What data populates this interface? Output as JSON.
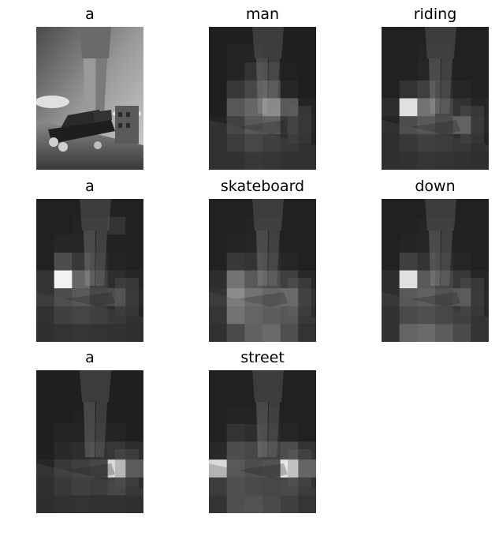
{
  "panels": [
    {
      "word": "a",
      "kind": "original",
      "cells": []
    },
    {
      "word": "man",
      "kind": "attention",
      "cells": [
        [
          0.12,
          0.12,
          0.12,
          0.12,
          0.12,
          0.12
        ],
        [
          0.12,
          0.14,
          0.14,
          0.13,
          0.12,
          0.12
        ],
        [
          0.12,
          0.14,
          0.2,
          0.18,
          0.13,
          0.12
        ],
        [
          0.12,
          0.22,
          0.28,
          0.3,
          0.15,
          0.12
        ],
        [
          0.12,
          0.34,
          0.4,
          0.55,
          0.35,
          0.14
        ],
        [
          0.14,
          0.26,
          0.35,
          0.38,
          0.22,
          0.15
        ],
        [
          0.14,
          0.2,
          0.26,
          0.22,
          0.18,
          0.14
        ],
        [
          0.14,
          0.14,
          0.18,
          0.16,
          0.14,
          0.14
        ]
      ]
    },
    {
      "word": "riding",
      "kind": "attention",
      "cells": [
        [
          0.13,
          0.13,
          0.13,
          0.13,
          0.13,
          0.13
        ],
        [
          0.13,
          0.13,
          0.14,
          0.14,
          0.13,
          0.13
        ],
        [
          0.13,
          0.13,
          0.15,
          0.15,
          0.13,
          0.13
        ],
        [
          0.13,
          0.2,
          0.25,
          0.18,
          0.15,
          0.13
        ],
        [
          0.18,
          0.88,
          0.45,
          0.28,
          0.2,
          0.15
        ],
        [
          0.14,
          0.3,
          0.35,
          0.3,
          0.38,
          0.16
        ],
        [
          0.13,
          0.18,
          0.22,
          0.2,
          0.18,
          0.14
        ],
        [
          0.13,
          0.14,
          0.16,
          0.15,
          0.14,
          0.13
        ]
      ]
    },
    {
      "word": "a",
      "kind": "attention",
      "cells": [
        [
          0.13,
          0.13,
          0.13,
          0.13,
          0.13,
          0.13
        ],
        [
          0.13,
          0.13,
          0.14,
          0.14,
          0.2,
          0.13
        ],
        [
          0.13,
          0.15,
          0.15,
          0.15,
          0.13,
          0.13
        ],
        [
          0.13,
          0.3,
          0.22,
          0.18,
          0.14,
          0.13
        ],
        [
          0.2,
          0.95,
          0.4,
          0.25,
          0.18,
          0.15
        ],
        [
          0.2,
          0.3,
          0.35,
          0.28,
          0.3,
          0.16
        ],
        [
          0.14,
          0.22,
          0.25,
          0.22,
          0.18,
          0.14
        ],
        [
          0.13,
          0.15,
          0.16,
          0.15,
          0.14,
          0.13
        ]
      ]
    },
    {
      "word": "skateboard",
      "kind": "attention",
      "cells": [
        [
          0.13,
          0.13,
          0.13,
          0.13,
          0.13,
          0.13
        ],
        [
          0.13,
          0.13,
          0.14,
          0.14,
          0.13,
          0.13
        ],
        [
          0.13,
          0.14,
          0.15,
          0.15,
          0.13,
          0.13
        ],
        [
          0.13,
          0.22,
          0.2,
          0.18,
          0.15,
          0.13
        ],
        [
          0.18,
          0.45,
          0.35,
          0.3,
          0.25,
          0.16
        ],
        [
          0.2,
          0.55,
          0.45,
          0.4,
          0.42,
          0.2
        ],
        [
          0.16,
          0.5,
          0.42,
          0.38,
          0.35,
          0.18
        ],
        [
          0.14,
          0.28,
          0.4,
          0.45,
          0.3,
          0.15
        ]
      ]
    },
    {
      "word": "down",
      "kind": "attention",
      "cells": [
        [
          0.13,
          0.13,
          0.13,
          0.13,
          0.13,
          0.13
        ],
        [
          0.13,
          0.13,
          0.14,
          0.14,
          0.13,
          0.13
        ],
        [
          0.13,
          0.14,
          0.15,
          0.15,
          0.13,
          0.13
        ],
        [
          0.13,
          0.25,
          0.2,
          0.18,
          0.15,
          0.13
        ],
        [
          0.18,
          0.88,
          0.35,
          0.28,
          0.22,
          0.15
        ],
        [
          0.18,
          0.35,
          0.38,
          0.32,
          0.35,
          0.16
        ],
        [
          0.14,
          0.28,
          0.3,
          0.26,
          0.22,
          0.15
        ],
        [
          0.14,
          0.42,
          0.45,
          0.38,
          0.28,
          0.15
        ]
      ]
    },
    {
      "word": "a",
      "kind": "attention",
      "cells": [
        [
          0.12,
          0.12,
          0.12,
          0.12,
          0.12,
          0.12
        ],
        [
          0.12,
          0.12,
          0.12,
          0.12,
          0.12,
          0.12
        ],
        [
          0.12,
          0.12,
          0.13,
          0.13,
          0.12,
          0.12
        ],
        [
          0.12,
          0.14,
          0.14,
          0.14,
          0.14,
          0.12
        ],
        [
          0.12,
          0.16,
          0.18,
          0.2,
          0.22,
          0.18
        ],
        [
          0.15,
          0.22,
          0.25,
          0.28,
          0.85,
          0.35
        ],
        [
          0.13,
          0.18,
          0.22,
          0.2,
          0.26,
          0.18
        ],
        [
          0.12,
          0.14,
          0.15,
          0.14,
          0.14,
          0.13
        ]
      ]
    },
    {
      "word": "street",
      "kind": "attention",
      "cells": [
        [
          0.13,
          0.13,
          0.13,
          0.13,
          0.13,
          0.13
        ],
        [
          0.13,
          0.13,
          0.13,
          0.13,
          0.13,
          0.13
        ],
        [
          0.13,
          0.14,
          0.14,
          0.14,
          0.13,
          0.13
        ],
        [
          0.13,
          0.2,
          0.18,
          0.17,
          0.15,
          0.13
        ],
        [
          0.16,
          0.3,
          0.28,
          0.26,
          0.3,
          0.2
        ],
        [
          0.85,
          0.35,
          0.3,
          0.32,
          0.9,
          0.4
        ],
        [
          0.2,
          0.3,
          0.28,
          0.26,
          0.28,
          0.2
        ],
        [
          0.15,
          0.3,
          0.32,
          0.28,
          0.22,
          0.16
        ]
      ]
    }
  ]
}
